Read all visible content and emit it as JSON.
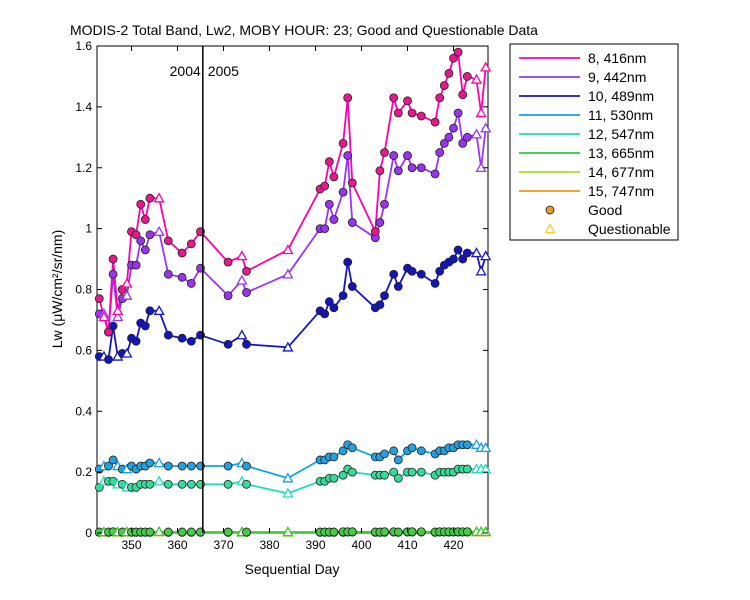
{
  "chart_data": {
    "type": "line",
    "title": "MODIS-2 Total Band,  Lw2, MOBY HOUR: 23;  Good and Questionable Data",
    "xlabel": "Sequential Day",
    "ylabel": "Lw (μW/cm²/sr/nm)",
    "xlim": [
      342.5,
      427.5
    ],
    "ylim": [
      0,
      1.6
    ],
    "xticks": [
      350,
      360,
      370,
      380,
      390,
      400,
      410,
      420
    ],
    "yticks": [
      0,
      0.2,
      0.4,
      0.6,
      0.8,
      1,
      1.2,
      1.4,
      1.6
    ],
    "ytick_labels": [
      "0",
      "0.2",
      "0.4",
      "0.6",
      "0.8",
      "1",
      "1.2",
      "1.4",
      "1.6"
    ],
    "grid": false,
    "legend_position": "outside-right",
    "year_divider": {
      "x": 365.5,
      "left_label": "2004",
      "right_label": "2005"
    },
    "x": [
      343,
      344,
      345,
      346,
      347,
      348,
      349,
      350,
      351,
      352,
      353,
      354,
      356,
      358,
      361,
      363,
      365,
      371,
      374,
      375,
      384,
      391,
      392,
      393,
      394,
      396,
      397,
      398,
      403,
      404,
      405,
      407,
      408,
      410,
      411,
      413,
      416,
      417,
      418,
      419,
      420,
      421,
      422,
      423,
      425,
      426,
      427
    ],
    "flags": [
      "G",
      "Q",
      "G",
      "G",
      "Q",
      "G",
      "Q",
      "G",
      "G",
      "G",
      "G",
      "G",
      "Q",
      "G",
      "G",
      "G",
      "G",
      "G",
      "Q",
      "G",
      "Q",
      "G",
      "G",
      "G",
      "G",
      "G",
      "G",
      "G",
      "G",
      "G",
      "G",
      "G",
      "G",
      "G",
      "G",
      "G",
      "G",
      "G",
      "G",
      "G",
      "G",
      "G",
      "G",
      "G",
      "Q",
      "Q",
      "Q"
    ],
    "series": [
      {
        "name": "8, 416nm",
        "color": "#ff00aa",
        "marker_color": "#e6188c",
        "values": [
          0.77,
          0.71,
          0.66,
          0.9,
          0.73,
          0.8,
          0.82,
          0.99,
          0.98,
          1.08,
          1.03,
          1.1,
          1.1,
          0.96,
          0.92,
          0.95,
          0.99,
          0.89,
          0.91,
          0.86,
          0.93,
          1.13,
          1.14,
          1.22,
          1.17,
          1.28,
          1.43,
          1.15,
          0.99,
          1.19,
          1.25,
          1.43,
          1.38,
          1.42,
          1.38,
          1.37,
          1.35,
          1.43,
          1.47,
          1.51,
          1.56,
          1.58,
          1.44,
          1.5,
          1.49,
          1.38,
          1.53
        ]
      },
      {
        "name": "9, 442nm",
        "color": "#9933ff",
        "marker_color": "#9933ee",
        "values": [
          0.72,
          0.72,
          0.66,
          0.85,
          0.71,
          0.77,
          0.78,
          0.88,
          0.88,
          0.96,
          0.93,
          0.98,
          0.99,
          0.85,
          0.84,
          0.82,
          0.87,
          0.78,
          0.83,
          0.79,
          0.85,
          1.0,
          1.0,
          1.08,
          1.03,
          1.12,
          1.24,
          1.02,
          0.97,
          1.02,
          1.08,
          1.24,
          1.19,
          1.24,
          1.2,
          1.2,
          1.18,
          1.25,
          1.28,
          1.3,
          1.33,
          1.38,
          1.28,
          1.3,
          1.31,
          1.2,
          1.33
        ]
      },
      {
        "name": "10, 489nm",
        "color": "#1414cc",
        "marker_color": "#1414bb",
        "values": [
          0.58,
          0.58,
          0.57,
          0.68,
          0.58,
          0.59,
          0.59,
          0.64,
          0.63,
          0.69,
          0.68,
          0.73,
          0.73,
          0.65,
          0.64,
          0.63,
          0.65,
          0.62,
          0.65,
          0.62,
          0.61,
          0.73,
          0.72,
          0.76,
          0.74,
          0.78,
          0.89,
          0.81,
          0.74,
          0.75,
          0.78,
          0.85,
          0.81,
          0.87,
          0.86,
          0.85,
          0.82,
          0.86,
          0.88,
          0.89,
          0.9,
          0.93,
          0.9,
          0.92,
          0.92,
          0.86,
          0.91
        ]
      },
      {
        "name": "11, 530nm",
        "color": "#11a0ee",
        "marker_color": "#22a0e0",
        "values": [
          0.21,
          0.22,
          0.22,
          0.24,
          0.22,
          0.21,
          0.21,
          0.22,
          0.21,
          0.22,
          0.22,
          0.23,
          0.23,
          0.22,
          0.22,
          0.22,
          0.22,
          0.22,
          0.23,
          0.22,
          0.18,
          0.24,
          0.24,
          0.25,
          0.25,
          0.27,
          0.29,
          0.28,
          0.25,
          0.25,
          0.26,
          0.27,
          0.24,
          0.27,
          0.28,
          0.27,
          0.26,
          0.27,
          0.27,
          0.28,
          0.28,
          0.29,
          0.29,
          0.29,
          0.29,
          0.28,
          0.28
        ]
      },
      {
        "name": "12, 547nm",
        "color": "#22ddbb",
        "marker_color": "#33dd99",
        "values": [
          0.15,
          0.17,
          0.17,
          0.17,
          0.16,
          0.16,
          0.15,
          0.15,
          0.15,
          0.16,
          0.16,
          0.16,
          0.17,
          0.16,
          0.16,
          0.16,
          0.16,
          0.16,
          0.17,
          0.16,
          0.13,
          0.17,
          0.17,
          0.18,
          0.18,
          0.19,
          0.21,
          0.2,
          0.19,
          0.19,
          0.19,
          0.2,
          0.18,
          0.2,
          0.2,
          0.2,
          0.19,
          0.2,
          0.2,
          0.2,
          0.2,
          0.21,
          0.21,
          0.21,
          0.21,
          0.21,
          0.21
        ]
      },
      {
        "name": "13, 665nm",
        "color": "#33cc33",
        "marker_color": "#44cc44",
        "values": [
          0.003,
          0.003,
          0.003,
          0.004,
          0.003,
          0.003,
          0.003,
          0.003,
          0.003,
          0.003,
          0.003,
          0.003,
          0.004,
          0.003,
          0.003,
          0.003,
          0.003,
          0.003,
          0.003,
          0.003,
          0.003,
          0.003,
          0.003,
          0.003,
          0.003,
          0.004,
          0.004,
          0.004,
          0.003,
          0.003,
          0.004,
          0.004,
          0.003,
          0.004,
          0.004,
          0.004,
          0.003,
          0.004,
          0.004,
          0.004,
          0.004,
          0.004,
          0.004,
          0.004,
          0.004,
          0.004,
          0.004
        ]
      },
      {
        "name": "14, 677nm",
        "color": "#aadd22",
        "marker_color": "#aadd33",
        "values": [
          0.003,
          0.003,
          0.003,
          0.004,
          0.003,
          0.003,
          0.003,
          0.003,
          0.003,
          0.003,
          0.003,
          0.003,
          0.004,
          0.003,
          0.003,
          0.003,
          0.003,
          0.003,
          0.003,
          0.003,
          0.003,
          0.003,
          0.003,
          0.003,
          0.003,
          0.004,
          0.004,
          0.004,
          0.003,
          0.003,
          0.004,
          0.004,
          0.003,
          0.004,
          0.004,
          0.004,
          0.003,
          0.004,
          0.004,
          0.004,
          0.004,
          0.004,
          0.004,
          0.004,
          0.004,
          0.004,
          0.004
        ]
      },
      {
        "name": "15, 747nm",
        "color": "#ee9911",
        "marker_color": "#dd8811",
        "values": [
          0.002,
          0.002,
          0.002,
          0.003,
          0.002,
          0.002,
          0.002,
          0.002,
          0.002,
          0.002,
          0.002,
          0.002,
          0.003,
          0.002,
          0.002,
          0.002,
          0.002,
          0.002,
          0.002,
          0.002,
          0.002,
          0.002,
          0.002,
          0.002,
          0.002,
          0.002,
          0.003,
          0.003,
          0.002,
          0.002,
          0.002,
          0.003,
          0.002,
          0.003,
          0.003,
          0.003,
          0.002,
          0.003,
          0.003,
          0.003,
          0.003,
          0.003,
          0.003,
          0.003,
          0.003,
          0.003,
          0.003
        ]
      }
    ],
    "legend_extra": [
      {
        "label": "Good",
        "marker": "circle",
        "color": "#ee9922"
      },
      {
        "label": "Questionable",
        "marker": "triangle",
        "color": "#ffcc33"
      }
    ]
  }
}
